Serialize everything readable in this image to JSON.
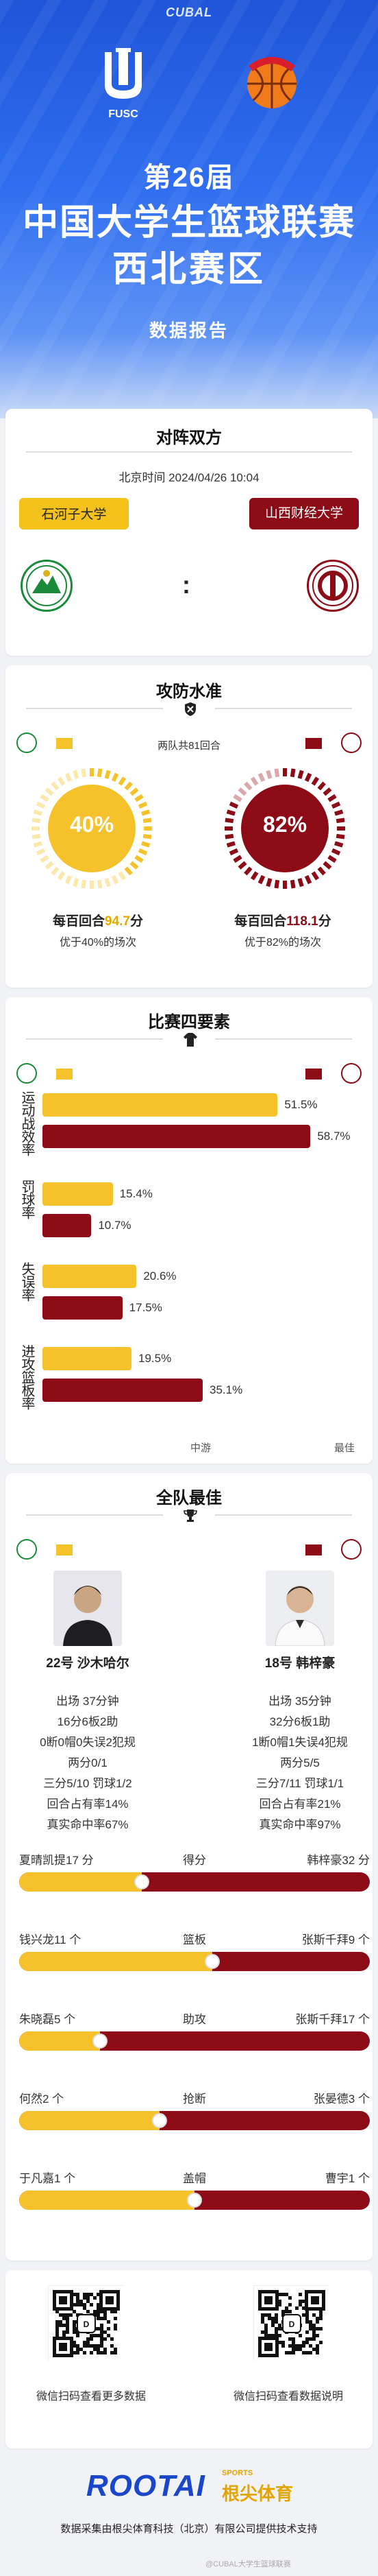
{
  "hero": {
    "brand": "CUBAL",
    "fusc_label": "FUSC",
    "edition": "第26届",
    "title_line1": "中国大学生篮球联赛",
    "title_line2": "西北赛区",
    "subtitle": "数据报告"
  },
  "matchup": {
    "title": "对阵双方",
    "time": "北京时间 2024/04/26 10:04",
    "team_a": "石河子大学",
    "team_b": "山西财经大学",
    "vs": ":"
  },
  "offense_defense": {
    "title": "攻防水准",
    "note": "两队共81回合",
    "team_a": {
      "percent_label": "40%",
      "percent": 40,
      "per100_prefix": "每百回合",
      "per100_value": "94.7",
      "per100_suffix": "分",
      "desc": "优于40%的场次"
    },
    "team_b": {
      "percent_label": "82%",
      "percent": 82,
      "per100_prefix": "每百回合",
      "per100_value": "118.1",
      "per100_suffix": "分",
      "desc": "优于82%的场次"
    }
  },
  "four_factors": {
    "title": "比赛四要素",
    "rows": [
      {
        "label": "运动战效率",
        "a_label": "51.5%",
        "a": 51.5,
        "b_label": "58.7%",
        "b": 58.7
      },
      {
        "label": "罚球率",
        "a_label": "15.4%",
        "a": 15.4,
        "b_label": "10.7%",
        "b": 10.7
      },
      {
        "label": "失误率",
        "a_label": "20.6%",
        "a": 20.6,
        "b_label": "17.5%",
        "b": 17.5
      },
      {
        "label": "进攻篮板率",
        "a_label": "19.5%",
        "a": 19.5,
        "b_label": "35.1%",
        "b": 35.1
      }
    ],
    "axis_mid": "中游",
    "axis_max": "最佳"
  },
  "best": {
    "title": "全队最佳",
    "player_a": {
      "name": "22号 沙木哈尔",
      "stats": [
        "出场 37分钟",
        "16分6板2助",
        "0断0帽0失误2犯规",
        "两分0/1",
        "三分5/10 罚球1/2",
        "回合占有率14%",
        "真实命中率67%"
      ]
    },
    "player_b": {
      "name": "18号 韩梓豪",
      "stats": [
        "出场 35分钟",
        "32分6板1助",
        "1断0帽1失误4犯规",
        "两分5/5",
        "三分7/11 罚球1/1",
        "回合占有率21%",
        "真实命中率97%"
      ]
    },
    "leaders": [
      {
        "a": "夏晴凯提17 分",
        "cat": "得分",
        "b": "韩梓豪32 分",
        "a_share": 0.35
      },
      {
        "a": "钱兴龙11 个",
        "cat": "篮板",
        "b": "张斯千拜9 个",
        "a_share": 0.55
      },
      {
        "a": "朱晓磊5 个",
        "cat": "助攻",
        "b": "张斯千拜17 个",
        "a_share": 0.23
      },
      {
        "a": "何然2 个",
        "cat": "抢断",
        "b": "张晏德3 个",
        "a_share": 0.4
      },
      {
        "a": "于凡嘉1 个",
        "cat": "盖帽",
        "b": "曹宇1 个",
        "a_share": 0.5
      }
    ]
  },
  "qr": {
    "left_caption": "微信扫码查看更多数据",
    "right_caption": "微信扫码查看数据说明"
  },
  "footer": {
    "brand": "ROOTAI",
    "brand_sub": "SPORTS",
    "brand_cn": "根尖体育",
    "credit": "数据采集由根尖体育科技（北京）有限公司提供技术支持",
    "watermark": "@CUBAL大学生篮球联赛"
  },
  "colors": {
    "team_a": "#f5c22b",
    "team_b": "#8c0b16",
    "hero": "#2f6ef0"
  }
}
